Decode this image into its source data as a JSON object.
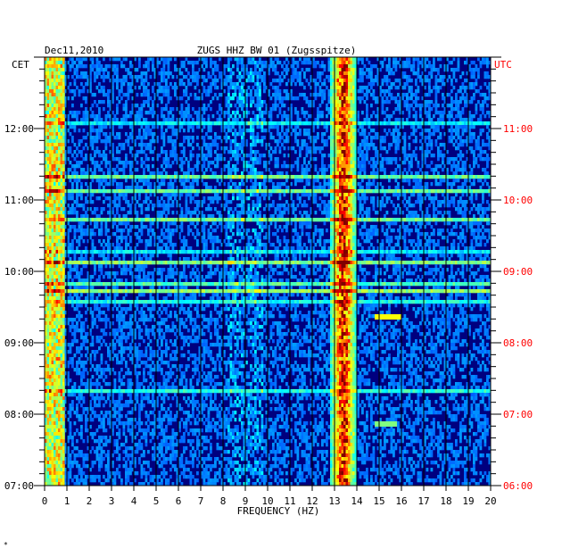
{
  "header": {
    "date": "Dec11,2010",
    "station": "ZUGS HHZ BW 01 (Zugsspitze)",
    "left_tz": "CET",
    "right_tz": "UTC"
  },
  "colors": {
    "right_axis_text": "#ff0000",
    "left_axis_text": "#000000",
    "background_field": "#00007f"
  },
  "chart_data": {
    "type": "heatmap",
    "title": "ZUGS HHZ BW 01 (Zugsspitze)",
    "xlabel": "FREQUENCY (HZ)",
    "x_ticks": [
      "0",
      "1",
      "2",
      "3",
      "4",
      "5",
      "6",
      "7",
      "8",
      "9",
      "10",
      "11",
      "12",
      "13",
      "14",
      "15",
      "16",
      "17",
      "18",
      "19",
      "20"
    ],
    "xlim": [
      0,
      20
    ],
    "left_y_ticks": [
      "07:00",
      "08:00",
      "09:00",
      "10:00",
      "11:00",
      "12:00"
    ],
    "right_y_ticks": [
      "06:00",
      "07:00",
      "08:00",
      "09:00",
      "10:00",
      "11:00"
    ],
    "time_range_cet": [
      "07:00",
      "13:00"
    ],
    "grid": true,
    "colormap": "jet",
    "features": [
      {
        "label": "persistent band",
        "freq_hz": [
          12.8,
          14.0
        ],
        "intensity": "high"
      },
      {
        "label": "low-frequency energy",
        "freq_hz": [
          0,
          1.0
        ],
        "intensity": "medium"
      },
      {
        "label": "burst",
        "freq_hz": [
          14.8,
          16.0
        ],
        "time_cet": "09:25",
        "intensity": "medium"
      },
      {
        "label": "burst",
        "freq_hz": [
          14.8,
          15.8
        ],
        "time_cet": "07:55",
        "intensity": "low"
      }
    ]
  },
  "footer": {
    "mark": "*"
  }
}
